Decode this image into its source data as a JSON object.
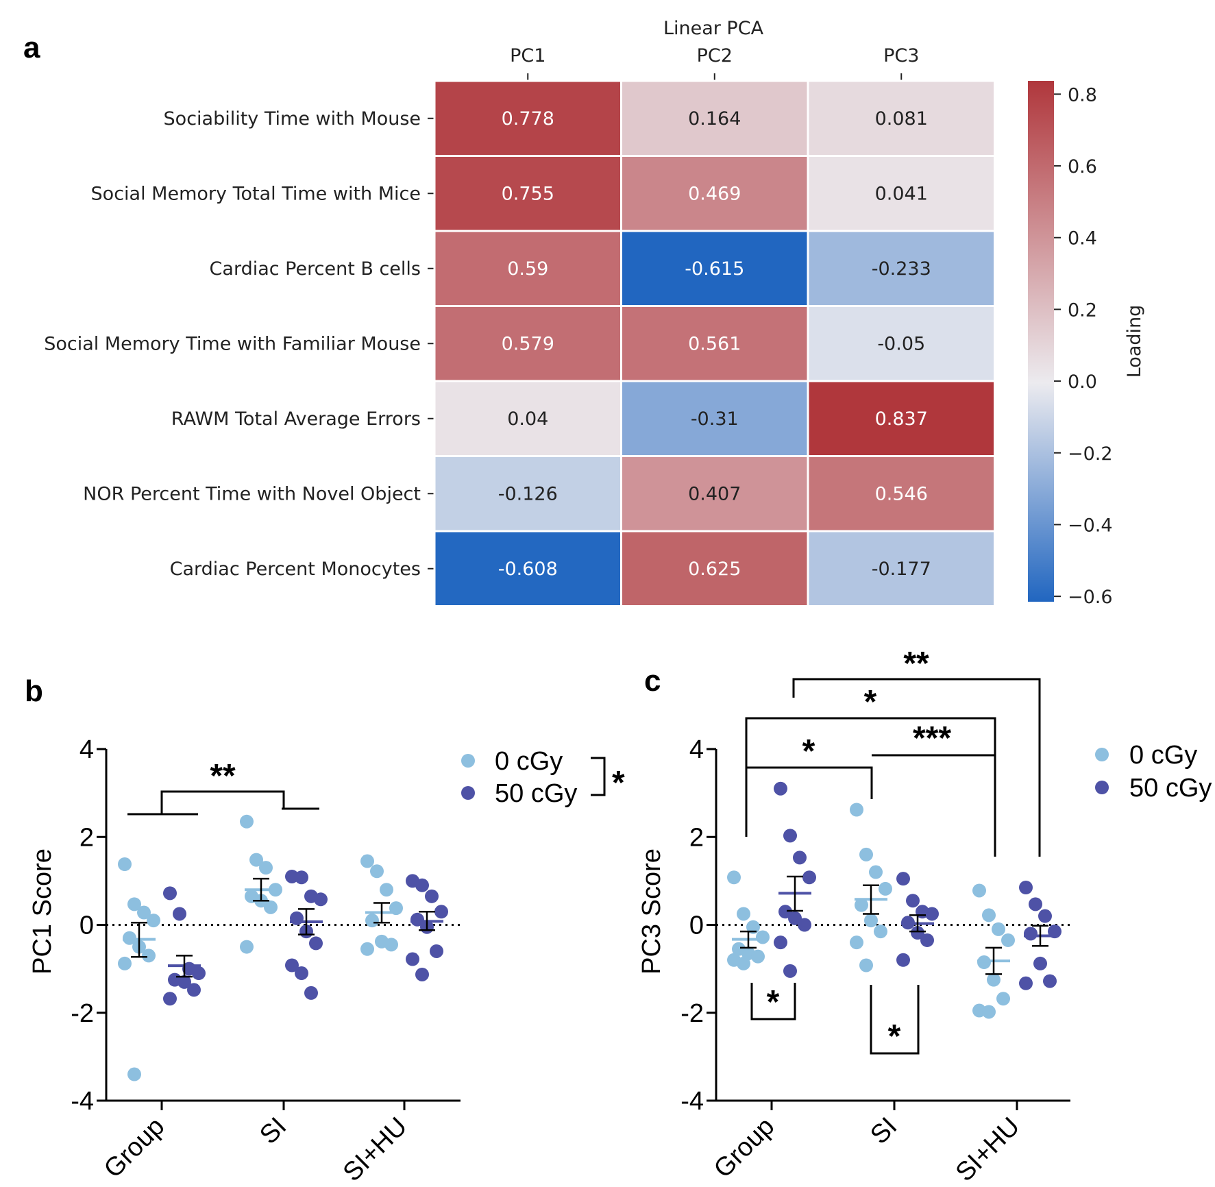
{
  "colors": {
    "light_blue": "#8dbfdf",
    "dark_blue": "#4e52a6",
    "heat_low": "#2166c0",
    "heat_mid": "#ecebef",
    "heat_high": "#b0373c"
  },
  "chart_data": [
    {
      "type": "heatmap",
      "panel": "a",
      "title": "Linear PCA",
      "columns": [
        "PC1",
        "PC2",
        "PC3"
      ],
      "rows": [
        "Sociability Time with Mouse",
        "Social Memory Total Time with Mice",
        "Cardiac Percent B cells",
        "Social Memory Time with Familiar Mouse",
        "RAWM Total Average Errors",
        "NOR Percent Time with Novel Object",
        "Cardiac Percent Monocytes"
      ],
      "values": [
        [
          0.778,
          0.164,
          0.081
        ],
        [
          0.755,
          0.469,
          0.041
        ],
        [
          0.59,
          -0.615,
          -0.233
        ],
        [
          0.579,
          0.561,
          -0.05
        ],
        [
          0.04,
          -0.31,
          0.837
        ],
        [
          -0.126,
          0.407,
          0.546
        ],
        [
          -0.608,
          0.625,
          -0.177
        ]
      ],
      "labels": [
        [
          "0.778",
          "0.164",
          "0.081"
        ],
        [
          "0.755",
          "0.469",
          "0.041"
        ],
        [
          "0.59",
          "-0.615",
          "-0.233"
        ],
        [
          "0.579",
          "0.561",
          "-0.05"
        ],
        [
          "0.04",
          "-0.31",
          "0.837"
        ],
        [
          "-0.126",
          "0.407",
          "0.546"
        ],
        [
          "-0.608",
          "0.625",
          "-0.177"
        ]
      ],
      "colorbar": {
        "label": "Loading",
        "range": [
          -0.615,
          0.837
        ],
        "ticks": [
          0.8,
          0.6,
          0.4,
          0.2,
          0.0,
          -0.2,
          -0.4,
          -0.6
        ],
        "tick_labels": [
          "0.8",
          "0.6",
          "0.4",
          "0.2",
          "0.0",
          "−0.2",
          "−0.4",
          "−0.6"
        ]
      }
    },
    {
      "type": "scatter",
      "panel": "b",
      "ylabel": "PC1 Score",
      "ylim": [
        -4,
        4
      ],
      "yticks": [
        4,
        2,
        0,
        -2,
        -4
      ],
      "ytick_labels": [
        "4",
        "2",
        "0",
        "-2",
        "-4"
      ],
      "categories": [
        "Group",
        "SI",
        "SI+HU"
      ],
      "legend": [
        "0 cGy",
        "50 cGy"
      ],
      "legend_sig": "*",
      "groups": [
        {
          "category": "Group",
          "series": "0 cGy",
          "mean": -0.33,
          "sem_low": -0.73,
          "sem_high": 0.05,
          "points": [
            1.38,
            0.47,
            0.28,
            0.1,
            -0.3,
            -0.5,
            -0.7,
            -0.88,
            -3.4
          ]
        },
        {
          "category": "Group",
          "series": "50 cGy",
          "mean": -0.93,
          "sem_low": -1.18,
          "sem_high": -0.7,
          "points": [
            0.72,
            0.25,
            -1.0,
            -1.1,
            -1.25,
            -1.3,
            -1.48,
            -1.68
          ]
        },
        {
          "category": "SI",
          "series": "0 cGy",
          "mean": 0.8,
          "sem_low": 0.55,
          "sem_high": 1.05,
          "points": [
            2.35,
            1.48,
            1.3,
            0.8,
            0.65,
            0.55,
            0.4,
            -0.5
          ]
        },
        {
          "category": "SI",
          "series": "50 cGy",
          "mean": 0.07,
          "sem_low": -0.22,
          "sem_high": 0.36,
          "points": [
            1.1,
            1.08,
            0.65,
            0.58,
            0.15,
            -0.15,
            -0.42,
            -0.92,
            -1.1,
            -1.55
          ]
        },
        {
          "category": "SI+HU",
          "series": "0 cGy",
          "mean": 0.28,
          "sem_low": 0.05,
          "sem_high": 0.5,
          "points": [
            1.45,
            1.22,
            0.8,
            0.38,
            0.1,
            -0.38,
            -0.45,
            -0.55
          ]
        },
        {
          "category": "SI+HU",
          "series": "50 cGy",
          "mean": 0.08,
          "sem_low": -0.12,
          "sem_high": 0.3,
          "points": [
            1.0,
            0.9,
            0.65,
            0.3,
            0.12,
            -0.05,
            -0.6,
            -0.78,
            -1.13
          ]
        }
      ],
      "significance": [
        {
          "between": "Group vs SI",
          "label": "**"
        }
      ]
    },
    {
      "type": "scatter",
      "panel": "c",
      "ylabel": "PC3 Score",
      "ylim": [
        -4,
        4
      ],
      "yticks": [
        4,
        2,
        0,
        -2,
        -4
      ],
      "ytick_labels": [
        "4",
        "2",
        "0",
        "-2",
        "-4"
      ],
      "categories": [
        "Group",
        "SI",
        "SI+HU"
      ],
      "legend": [
        "0 cGy",
        "50 cGy"
      ],
      "groups": [
        {
          "category": "Group",
          "series": "0 cGy",
          "mean": -0.33,
          "sem_low": -0.52,
          "sem_high": -0.15,
          "points": [
            1.08,
            0.25,
            -0.05,
            -0.28,
            -0.55,
            -0.65,
            -0.72,
            -0.8,
            -0.88
          ]
        },
        {
          "category": "Group",
          "series": "50 cGy",
          "mean": 0.72,
          "sem_low": 0.32,
          "sem_high": 1.1,
          "points": [
            3.1,
            2.03,
            1.53,
            1.08,
            0.3,
            0.15,
            0.0,
            -0.4,
            -1.05
          ]
        },
        {
          "category": "SI",
          "series": "0 cGy",
          "mean": 0.58,
          "sem_low": 0.25,
          "sem_high": 0.9,
          "points": [
            2.62,
            1.6,
            1.2,
            0.82,
            0.45,
            0.1,
            -0.15,
            -0.4,
            -0.92
          ]
        },
        {
          "category": "SI",
          "series": "50 cGy",
          "mean": 0.03,
          "sem_low": -0.15,
          "sem_high": 0.22,
          "points": [
            1.05,
            0.55,
            0.3,
            0.25,
            0.05,
            -0.18,
            -0.35,
            -0.8
          ]
        },
        {
          "category": "SI+HU",
          "series": "0 cGy",
          "mean": -0.82,
          "sem_low": -1.12,
          "sem_high": -0.52,
          "points": [
            0.78,
            0.22,
            -0.1,
            -0.35,
            -0.85,
            -1.25,
            -1.68,
            -1.95,
            -1.98
          ]
        },
        {
          "category": "SI+HU",
          "series": "50 cGy",
          "mean": -0.25,
          "sem_low": -0.48,
          "sem_high": -0.02,
          "points": [
            0.85,
            0.47,
            0.2,
            -0.15,
            -0.2,
            -0.88,
            -1.28,
            -1.33
          ]
        }
      ],
      "significance": [
        {
          "between": "Group 0 cGy vs Group 50 cGy",
          "label": "*"
        },
        {
          "between": "SI 0 cGy vs SI 50 cGy",
          "label": "*"
        },
        {
          "between": "Group vs SI",
          "label": "*"
        },
        {
          "between": "SI vs SI+HU",
          "label": "***"
        },
        {
          "between": "Group vs SI+HU 0 cGy",
          "label": "*"
        },
        {
          "between": "Group 50 cGy vs SI+HU 50 cGy",
          "label": "**"
        }
      ]
    }
  ],
  "panel_letters": [
    "a",
    "b",
    "c"
  ]
}
